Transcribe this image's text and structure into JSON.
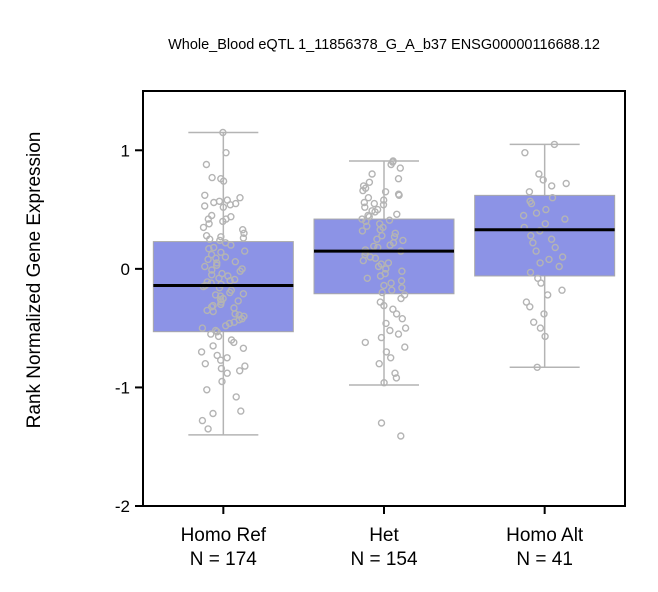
{
  "chart_data": {
    "type": "box",
    "title": "Whole_Blood eQTL 1_11856378_G_A_b37 ENSG00000116688.12",
    "xlabel": "",
    "ylabel": "Rank Normalized Gene Expression",
    "ylim": [
      -2,
      1.5
    ],
    "yticks": [
      1,
      0,
      -1,
      -2
    ],
    "yticklabels": [
      "1",
      "0",
      "-1",
      "-2"
    ],
    "box_color": "#8c93e6",
    "median_color": "#000000",
    "point_color": "#b4b4b4",
    "groups": [
      {
        "label": "Homo Ref",
        "n_label": "N = 174",
        "n": 174,
        "whisker_low": -1.4,
        "q1": -0.53,
        "median": -0.14,
        "q3": 0.23,
        "whisker_high": 1.15,
        "points": [
          1.15,
          0.98,
          0.88,
          0.77,
          0.76,
          0.74,
          0.62,
          0.6,
          0.58,
          0.57,
          0.56,
          0.55,
          0.54,
          0.53,
          0.52,
          0.45,
          0.44,
          0.42,
          0.42,
          0.4,
          0.38,
          0.35,
          0.33,
          0.3,
          0.28,
          0.27,
          0.26,
          0.25,
          0.24,
          0.22,
          0.2,
          0.18,
          0.17,
          0.15,
          0.14,
          0.12,
          0.1,
          0.09,
          0.08,
          0.06,
          0.05,
          0.03,
          0.02,
          0.0,
          -0.01,
          -0.02,
          -0.04,
          -0.05,
          -0.06,
          -0.08,
          -0.09,
          -0.1,
          -0.11,
          -0.12,
          -0.13,
          -0.14,
          -0.15,
          -0.16,
          -0.18,
          -0.2,
          -0.21,
          -0.22,
          -0.23,
          -0.25,
          -0.26,
          -0.27,
          -0.28,
          -0.3,
          -0.31,
          -0.32,
          -0.33,
          -0.35,
          -0.36,
          -0.38,
          -0.39,
          -0.4,
          -0.42,
          -0.43,
          -0.45,
          -0.46,
          -0.48,
          -0.5,
          -0.52,
          -0.53,
          -0.55,
          -0.57,
          -0.6,
          -0.62,
          -0.65,
          -0.67,
          -0.7,
          -0.73,
          -0.75,
          -0.77,
          -0.8,
          -0.82,
          -0.84,
          -0.86,
          -0.88,
          -0.95,
          -1.02,
          -1.08,
          -1.2,
          -1.22,
          -1.28,
          -1.35
        ]
      },
      {
        "label": "Het",
        "n_label": "N = 154",
        "n": 154,
        "whisker_low": -0.98,
        "q1": -0.21,
        "median": 0.15,
        "q3": 0.42,
        "whisker_high": 0.91,
        "points": [
          0.91,
          0.9,
          0.88,
          0.85,
          0.8,
          0.76,
          0.73,
          0.7,
          0.68,
          0.66,
          0.65,
          0.63,
          0.62,
          0.6,
          0.58,
          0.56,
          0.55,
          0.54,
          0.52,
          0.5,
          0.49,
          0.48,
          0.46,
          0.45,
          0.44,
          0.42,
          0.41,
          0.4,
          0.38,
          0.36,
          0.35,
          0.33,
          0.32,
          0.3,
          0.28,
          0.27,
          0.25,
          0.24,
          0.22,
          0.2,
          0.19,
          0.18,
          0.16,
          0.15,
          0.14,
          0.12,
          0.1,
          0.09,
          0.07,
          0.05,
          0.04,
          0.02,
          0.0,
          -0.02,
          -0.04,
          -0.06,
          -0.08,
          -0.1,
          -0.12,
          -0.14,
          -0.16,
          -0.18,
          -0.2,
          -0.22,
          -0.25,
          -0.28,
          -0.31,
          -0.34,
          -0.38,
          -0.42,
          -0.46,
          -0.5,
          -0.52,
          -0.55,
          -0.58,
          -0.62,
          -0.66,
          -0.7,
          -0.75,
          -0.8,
          -0.88,
          -0.92,
          -0.96,
          -1.3,
          -1.41
        ]
      },
      {
        "label": "Homo Alt",
        "n_label": "N = 41",
        "n": 41,
        "whisker_low": -0.83,
        "q1": -0.06,
        "median": 0.33,
        "q3": 0.62,
        "whisker_high": 1.05,
        "points": [
          1.05,
          0.98,
          0.8,
          0.75,
          0.72,
          0.7,
          0.65,
          0.6,
          0.57,
          0.55,
          0.5,
          0.47,
          0.45,
          0.42,
          0.38,
          0.35,
          0.32,
          0.28,
          0.25,
          0.22,
          0.18,
          0.15,
          0.1,
          0.08,
          0.05,
          0.02,
          -0.03,
          -0.08,
          -0.12,
          -0.18,
          -0.22,
          -0.28,
          -0.32,
          -0.38,
          -0.45,
          -0.5,
          -0.57,
          -0.83
        ]
      }
    ]
  }
}
